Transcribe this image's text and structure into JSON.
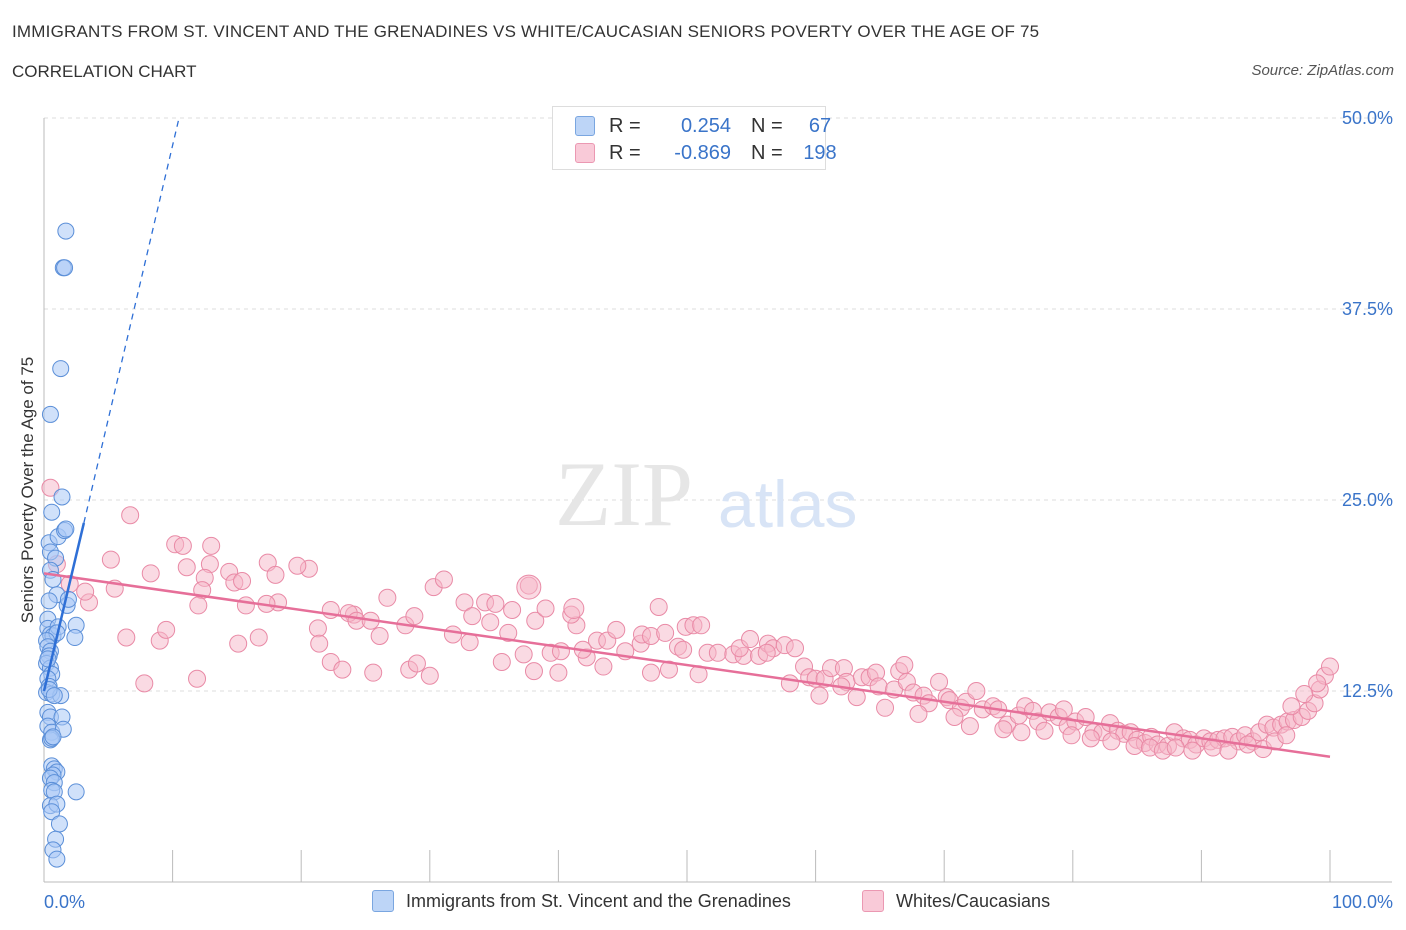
{
  "header": {
    "title": "IMMIGRANTS FROM ST. VINCENT AND THE GRENADINES VS WHITE/CAUCASIAN SENIORS POVERTY OVER THE AGE OF 75",
    "subtitle": "CORRELATION CHART",
    "source": "Source: ZipAtlas.com"
  },
  "watermark": {
    "zip": "ZIP",
    "atlas": "atlas"
  },
  "legend": {
    "r_label": "R =",
    "n_label": "N =",
    "series1": {
      "r": "0.254",
      "n": "67",
      "color": "#a9c8f5"
    },
    "series2": {
      "r": "-0.869",
      "n": "198",
      "color": "#f6b6c8"
    }
  },
  "bottom_legend": {
    "series1": "Immigrants from St. Vincent and the Grenadines",
    "series2": "Whites/Caucasians"
  },
  "colors": {
    "blue_fill": "#a9c8f5",
    "blue_stroke": "#5b8fd8",
    "blue_line": "#2e6fd6",
    "pink_fill": "#f6b6c8",
    "pink_stroke": "#e98aa6",
    "pink_line": "#e66f99",
    "axis_text": "#3a74c9"
  },
  "chart_data": {
    "type": "scatter",
    "ylabel": "Seniors Poverty Over the Age of 75",
    "xlabel": "",
    "xlim": [
      0,
      100
    ],
    "ylim": [
      0,
      50
    ],
    "x_tick_labels": {
      "left": "0.0%",
      "right": "100.0%"
    },
    "y_ticks": [
      {
        "value": 12.5,
        "label": "12.5%"
      },
      {
        "value": 25,
        "label": "25.0%"
      },
      {
        "value": 37.5,
        "label": "37.5%"
      },
      {
        "value": 50,
        "label": "50.0%"
      }
    ],
    "grid": true,
    "series": [
      {
        "name": "Immigrants from St. Vincent and the Grenadines",
        "r": 0.254,
        "n": 67,
        "trend": {
          "solid": [
            [
              0,
              12.5
            ],
            [
              3.1,
              23.5
            ]
          ],
          "dashed": [
            [
              3.1,
              23.5
            ],
            [
              10.5,
              50
            ]
          ]
        },
        "points": [
          [
            1.7,
            42.6
          ],
          [
            1.5,
            40.2
          ],
          [
            1.6,
            40.2
          ],
          [
            1.3,
            33.6
          ],
          [
            0.5,
            30.6
          ],
          [
            1.4,
            25.2
          ],
          [
            0.6,
            24.2
          ],
          [
            0.4,
            22.2
          ],
          [
            0.5,
            21.6
          ],
          [
            0.9,
            21.2
          ],
          [
            1.1,
            22.6
          ],
          [
            1.6,
            23.0
          ],
          [
            1.7,
            23.1
          ],
          [
            0.5,
            20.4
          ],
          [
            0.7,
            19.8
          ],
          [
            1.0,
            18.8
          ],
          [
            1.8,
            18.1
          ],
          [
            1.9,
            18.5
          ],
          [
            0.4,
            18.4
          ],
          [
            0.3,
            17.2
          ],
          [
            0.3,
            16.6
          ],
          [
            0.5,
            16.2
          ],
          [
            0.7,
            16.1
          ],
          [
            1.1,
            16.7
          ],
          [
            2.5,
            16.8
          ],
          [
            2.4,
            16.0
          ],
          [
            1.0,
            16.3
          ],
          [
            0.2,
            15.8
          ],
          [
            0.3,
            15.4
          ],
          [
            0.5,
            15.1
          ],
          [
            0.4,
            14.8
          ],
          [
            0.2,
            14.3
          ],
          [
            0.5,
            14.0
          ],
          [
            0.6,
            13.6
          ],
          [
            0.3,
            13.3
          ],
          [
            0.4,
            12.8
          ],
          [
            0.2,
            12.4
          ],
          [
            0.6,
            12.3
          ],
          [
            1.3,
            12.2
          ],
          [
            0.3,
            11.1
          ],
          [
            0.5,
            10.8
          ],
          [
            1.4,
            10.8
          ],
          [
            0.3,
            10.2
          ],
          [
            0.6,
            9.8
          ],
          [
            1.5,
            10.0
          ],
          [
            0.5,
            9.3
          ],
          [
            0.6,
            9.4
          ],
          [
            0.7,
            9.5
          ],
          [
            0.6,
            7.6
          ],
          [
            0.8,
            7.4
          ],
          [
            1.0,
            7.2
          ],
          [
            0.7,
            7.0
          ],
          [
            0.5,
            6.8
          ],
          [
            0.8,
            6.5
          ],
          [
            0.6,
            6.0
          ],
          [
            0.8,
            5.9
          ],
          [
            2.5,
            5.9
          ],
          [
            0.5,
            5.0
          ],
          [
            1.0,
            5.1
          ],
          [
            0.6,
            4.6
          ],
          [
            1.2,
            3.8
          ],
          [
            0.9,
            2.8
          ],
          [
            0.7,
            2.1
          ],
          [
            1.0,
            1.5
          ],
          [
            0.4,
            12.6
          ],
          [
            0.8,
            12.2
          ],
          [
            0.3,
            14.6
          ]
        ]
      },
      {
        "name": "Whites/Caucasians",
        "r": -0.869,
        "n": 198,
        "trend": {
          "solid": [
            [
              0,
              20.2
            ],
            [
              100,
              8.2
            ]
          ]
        },
        "points": [
          [
            0.5,
            25.8
          ],
          [
            6.7,
            24.0
          ],
          [
            1.0,
            20.8
          ],
          [
            2.0,
            19.5
          ],
          [
            3.5,
            18.3
          ],
          [
            3.2,
            19.0
          ],
          [
            5.2,
            21.1
          ],
          [
            5.5,
            19.2
          ],
          [
            8.3,
            20.2
          ],
          [
            10.2,
            22.1
          ],
          [
            10.8,
            22.0
          ],
          [
            11.1,
            20.6
          ],
          [
            13.0,
            22.0
          ],
          [
            12.9,
            20.8
          ],
          [
            12.5,
            19.9
          ],
          [
            12.3,
            19.1
          ],
          [
            14.4,
            20.3
          ],
          [
            14.8,
            19.6
          ],
          [
            15.4,
            19.7
          ],
          [
            17.4,
            20.9
          ],
          [
            18.0,
            20.1
          ],
          [
            18.2,
            18.3
          ],
          [
            20.6,
            20.5
          ],
          [
            15.7,
            18.1
          ],
          [
            17.3,
            18.2
          ],
          [
            21.3,
            16.6
          ],
          [
            22.3,
            17.8
          ],
          [
            24.1,
            17.5
          ],
          [
            23.7,
            17.6
          ],
          [
            24.3,
            17.1
          ],
          [
            25.4,
            17.1
          ],
          [
            26.7,
            18.6
          ],
          [
            28.1,
            16.8
          ],
          [
            28.8,
            17.4
          ],
          [
            30.3,
            19.3
          ],
          [
            31.1,
            19.8
          ],
          [
            32.7,
            18.3
          ],
          [
            31.8,
            16.2
          ],
          [
            33.1,
            15.7
          ],
          [
            34.3,
            18.3
          ],
          [
            35.1,
            18.2
          ],
          [
            34.7,
            17.0
          ],
          [
            36.1,
            16.3
          ],
          [
            36.4,
            17.8
          ],
          [
            37.7,
            19.4
          ],
          [
            38.2,
            17.1
          ],
          [
            39.4,
            15.0
          ],
          [
            40.2,
            15.1
          ],
          [
            41.4,
            16.8
          ],
          [
            41.0,
            17.5
          ],
          [
            42.2,
            14.7
          ],
          [
            43.0,
            15.8
          ],
          [
            43.8,
            15.8
          ],
          [
            45.2,
            15.1
          ],
          [
            44.5,
            16.5
          ],
          [
            46.4,
            15.6
          ],
          [
            46.5,
            16.2
          ],
          [
            47.2,
            16.1
          ],
          [
            48.6,
            13.9
          ],
          [
            49.3,
            15.4
          ],
          [
            49.7,
            15.2
          ],
          [
            48.3,
            16.3
          ],
          [
            49.9,
            16.7
          ],
          [
            50.5,
            16.8
          ],
          [
            51.1,
            16.8
          ],
          [
            51.6,
            15.0
          ],
          [
            52.4,
            15.0
          ],
          [
            53.6,
            14.9
          ],
          [
            54.4,
            14.8
          ],
          [
            54.1,
            15.3
          ],
          [
            54.9,
            15.9
          ],
          [
            55.6,
            14.8
          ],
          [
            56.3,
            15.6
          ],
          [
            56.7,
            15.3
          ],
          [
            57.6,
            15.5
          ],
          [
            58.4,
            15.3
          ],
          [
            59.1,
            14.1
          ],
          [
            59.5,
            13.4
          ],
          [
            60.0,
            13.3
          ],
          [
            60.7,
            13.3
          ],
          [
            61.2,
            14.0
          ],
          [
            62.2,
            14.0
          ],
          [
            62.4,
            13.1
          ],
          [
            63.6,
            13.4
          ],
          [
            64.2,
            13.4
          ],
          [
            64.7,
            13.7
          ],
          [
            64.9,
            12.8
          ],
          [
            66.5,
            13.8
          ],
          [
            66.1,
            12.6
          ],
          [
            66.9,
            14.2
          ],
          [
            67.1,
            13.1
          ],
          [
            67.6,
            12.4
          ],
          [
            68.4,
            12.2
          ],
          [
            68.8,
            11.7
          ],
          [
            69.6,
            13.1
          ],
          [
            70.2,
            12.1
          ],
          [
            70.4,
            11.9
          ],
          [
            71.3,
            11.4
          ],
          [
            71.7,
            11.8
          ],
          [
            72.5,
            12.5
          ],
          [
            73.0,
            11.3
          ],
          [
            73.8,
            11.5
          ],
          [
            74.2,
            11.3
          ],
          [
            74.9,
            10.3
          ],
          [
            75.8,
            10.9
          ],
          [
            76.3,
            11.5
          ],
          [
            76.9,
            11.2
          ],
          [
            77.3,
            10.5
          ],
          [
            78.2,
            11.1
          ],
          [
            78.9,
            10.8
          ],
          [
            79.3,
            11.3
          ],
          [
            79.6,
            10.2
          ],
          [
            80.2,
            10.5
          ],
          [
            81.0,
            10.8
          ],
          [
            81.6,
            9.8
          ],
          [
            82.3,
            9.8
          ],
          [
            82.9,
            10.4
          ],
          [
            83.5,
            9.9
          ],
          [
            84.0,
            9.7
          ],
          [
            84.5,
            9.8
          ],
          [
            85.0,
            9.3
          ],
          [
            85.6,
            9.1
          ],
          [
            86.1,
            9.5
          ],
          [
            86.6,
            9.0
          ],
          [
            87.4,
            8.9
          ],
          [
            87.9,
            9.8
          ],
          [
            88.6,
            9.4
          ],
          [
            89.1,
            9.3
          ],
          [
            89.6,
            9.0
          ],
          [
            90.2,
            9.4
          ],
          [
            90.7,
            9.2
          ],
          [
            91.3,
            9.3
          ],
          [
            91.8,
            9.4
          ],
          [
            92.4,
            9.5
          ],
          [
            92.9,
            9.2
          ],
          [
            93.4,
            9.6
          ],
          [
            94.0,
            9.2
          ],
          [
            94.5,
            9.8
          ],
          [
            95.1,
            10.3
          ],
          [
            95.6,
            10.1
          ],
          [
            96.2,
            10.3
          ],
          [
            96.7,
            10.5
          ],
          [
            97.2,
            10.6
          ],
          [
            97.8,
            10.8
          ],
          [
            98.3,
            11.2
          ],
          [
            98.8,
            11.7
          ],
          [
            99.2,
            12.6
          ],
          [
            99.6,
            13.5
          ],
          [
            100.0,
            14.1
          ],
          [
            99.0,
            13.0
          ],
          [
            98.0,
            12.3
          ],
          [
            97.0,
            11.5
          ],
          [
            9.0,
            15.8
          ],
          [
            11.9,
            13.3
          ],
          [
            15.1,
            15.6
          ],
          [
            16.7,
            16.0
          ],
          [
            22.3,
            14.4
          ],
          [
            23.2,
            13.9
          ],
          [
            25.6,
            13.7
          ],
          [
            28.4,
            13.9
          ],
          [
            29.0,
            14.3
          ],
          [
            37.3,
            14.9
          ],
          [
            38.1,
            13.8
          ],
          [
            41.9,
            15.2
          ],
          [
            43.5,
            14.1
          ],
          [
            47.2,
            13.7
          ],
          [
            47.8,
            18.0
          ],
          [
            50.9,
            13.6
          ],
          [
            56.2,
            15.0
          ],
          [
            58.0,
            13.0
          ],
          [
            60.3,
            12.2
          ],
          [
            62.0,
            12.8
          ],
          [
            63.2,
            12.1
          ],
          [
            65.4,
            11.4
          ],
          [
            68.0,
            11.0
          ],
          [
            70.8,
            10.8
          ],
          [
            72.0,
            10.2
          ],
          [
            74.6,
            10.0
          ],
          [
            76.0,
            9.8
          ],
          [
            77.8,
            9.9
          ],
          [
            79.9,
            9.6
          ],
          [
            81.4,
            9.4
          ],
          [
            83.0,
            9.2
          ],
          [
            84.8,
            8.9
          ],
          [
            86.0,
            8.8
          ],
          [
            87.0,
            8.6
          ],
          [
            88.0,
            8.8
          ],
          [
            89.3,
            8.6
          ],
          [
            90.9,
            8.8
          ],
          [
            92.1,
            8.6
          ],
          [
            93.6,
            9.0
          ],
          [
            94.8,
            8.7
          ],
          [
            95.7,
            9.2
          ],
          [
            96.6,
            9.6
          ],
          [
            6.4,
            16.0
          ],
          [
            7.8,
            13.0
          ],
          [
            9.5,
            16.5
          ],
          [
            12.0,
            18.1
          ],
          [
            19.7,
            20.7
          ],
          [
            21.4,
            15.6
          ],
          [
            26.1,
            16.1
          ],
          [
            30.0,
            13.5
          ],
          [
            33.3,
            17.4
          ],
          [
            35.6,
            14.4
          ],
          [
            39.0,
            17.9
          ],
          [
            40.0,
            13.7
          ]
        ],
        "large_points": [
          [
            37.7,
            19.3,
            12
          ],
          [
            41.2,
            17.9,
            10
          ]
        ]
      }
    ]
  }
}
